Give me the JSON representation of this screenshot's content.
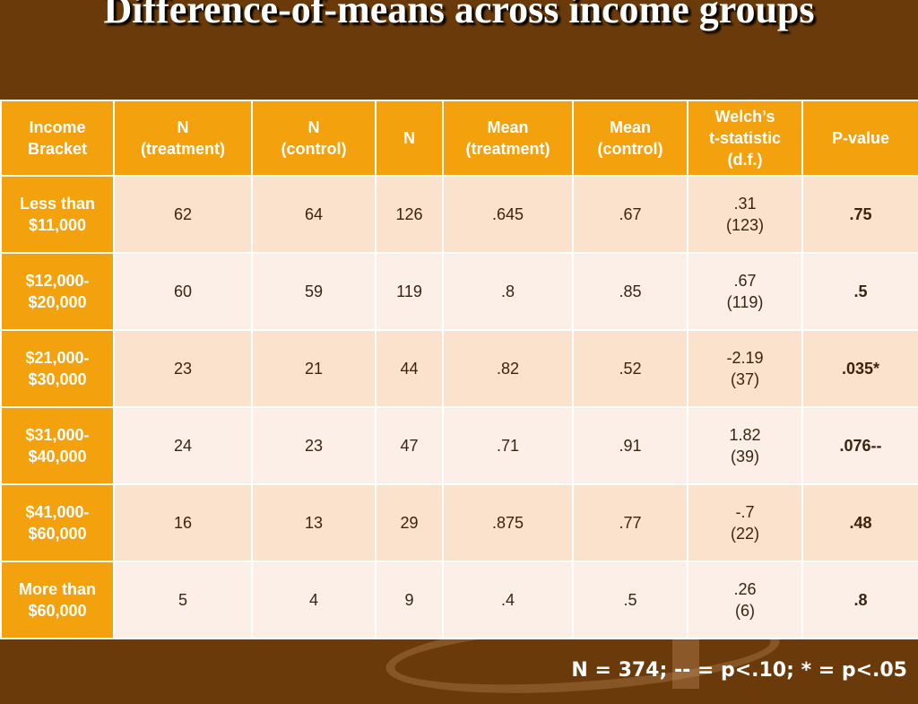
{
  "slide": {
    "title": "Difference-of-means across income groups"
  },
  "table": {
    "headers": [
      [
        "Income",
        "Bracket"
      ],
      [
        "N",
        "(treatment)"
      ],
      [
        "N",
        "(control)"
      ],
      [
        "N"
      ],
      [
        "Mean",
        "(treatment)"
      ],
      [
        "Mean",
        "(control)"
      ],
      [
        "Welch’s",
        "t-statistic",
        "(d.f.)"
      ],
      [
        "P-value"
      ]
    ],
    "rows": [
      {
        "bracket": [
          "Less than",
          "$11,000"
        ],
        "n_treatment": "62",
        "n_control": "64",
        "n": "126",
        "mean_treatment": ".645",
        "mean_control": ".67",
        "t_stat": ".31",
        "df": "(123)",
        "p_value": ".75"
      },
      {
        "bracket": [
          "$12,000-",
          "$20,000"
        ],
        "n_treatment": "60",
        "n_control": "59",
        "n": "119",
        "mean_treatment": ".8",
        "mean_control": ".85",
        "t_stat": ".67",
        "df": "(119)",
        "p_value": ".5"
      },
      {
        "bracket": [
          "$21,000-",
          "$30,000"
        ],
        "n_treatment": "23",
        "n_control": "21",
        "n": "44",
        "mean_treatment": ".82",
        "mean_control": ".52",
        "t_stat": "-2.19",
        "df": "(37)",
        "p_value": ".035*"
      },
      {
        "bracket": [
          "$31,000-",
          "$40,000"
        ],
        "n_treatment": "24",
        "n_control": "23",
        "n": "47",
        "mean_treatment": ".71",
        "mean_control": ".91",
        "t_stat": "1.82",
        "df": "(39)",
        "p_value": ".076--"
      },
      {
        "bracket": [
          "$41,000-",
          "$60,000"
        ],
        "n_treatment": "16",
        "n_control": "13",
        "n": "29",
        "mean_treatment": ".875",
        "mean_control": ".77",
        "t_stat": "-.7",
        "df": "(22)",
        "p_value": ".48"
      },
      {
        "bracket": [
          "More than",
          "$60,000"
        ],
        "n_treatment": "5",
        "n_control": "4",
        "n": "9",
        "mean_treatment": ".4",
        "mean_control": ".5",
        "t_stat": ".26",
        "df": "(6)",
        "p_value": ".8"
      }
    ]
  },
  "footnote": "N = 374; -- = p<.10; * = p<.05",
  "colors": {
    "background": "#6b3a0a",
    "header": "#f3a20e",
    "row_odd": "#fbe2cd",
    "row_even": "#fcefe7"
  }
}
